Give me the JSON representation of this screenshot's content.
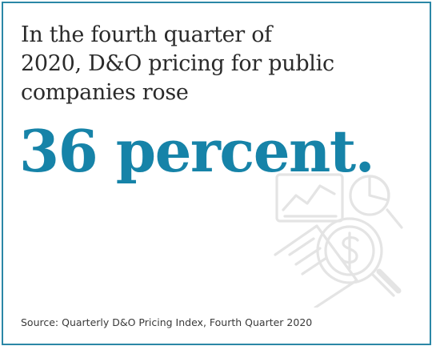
{
  "intro": {
    "line1": "In the fourth quarter of",
    "line2": "2020, D&O pricing for public",
    "line3": "companies rose"
  },
  "headline": "36 percent.",
  "source": "Source: Quarterly D&O Pricing Index, Fourth Quarter 2020",
  "colors": {
    "accent": "#1683a8",
    "border": "#2b87a6",
    "body_text": "#2a2a2a",
    "watermark": "#e6e6e6"
  },
  "icons": {
    "watermark": "pricing-analysis-icon"
  }
}
